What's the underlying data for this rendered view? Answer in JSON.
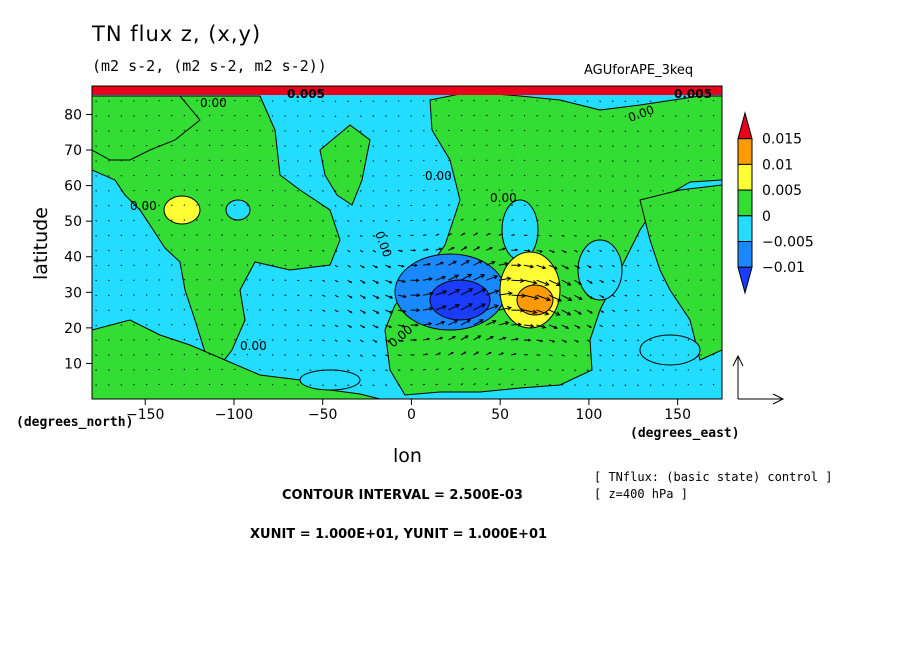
{
  "header": {
    "title": "TN flux z, (x,y)",
    "subtitle": "(m2 s-2, (m2 s-2, m2 s-2))",
    "dataset": "AGUforAPE_3keq"
  },
  "footer": {
    "contour_interval": "CONTOUR INTERVAL = 2.500E-03",
    "units": "XUNIT = 1.000E+01, YUNIT = 1.000E+01",
    "info_line1": "[ TNflux: (basic state) control ]",
    "info_line2": "[ z=400 hPa ]"
  },
  "contour_labels": [
    "0.00",
    "0.00",
    "0.00",
    "0.00",
    "0.00",
    "0.00",
    "0.00",
    "0.00",
    "0.005",
    "0.005"
  ],
  "colors": {
    "red": "#e8001c",
    "orange": "#ff9a00",
    "yellow": "#ffff33",
    "green": "#33dd33",
    "cyan": "#22ddff",
    "blue": "#1a88ff",
    "deepblue": "#1a3cff"
  },
  "chart_data": {
    "type": "heatmap",
    "title": "TN flux z, (x,y)",
    "subtitle": "(m2 s-2, (m2 s-2, m2 s-2))",
    "xlabel": "lon",
    "ylabel": "latitude",
    "x_units": "(degrees_east)",
    "y_units": "(degrees_north)",
    "xlim": [
      -180,
      175
    ],
    "ylim": [
      0,
      88
    ],
    "x_ticks": [
      -150,
      -100,
      -50,
      0,
      50,
      100,
      150
    ],
    "x_tick_labels": [
      "−150",
      "−100",
      "−50",
      "0",
      "50",
      "100",
      "150"
    ],
    "y_ticks": [
      10,
      20,
      30,
      40,
      50,
      60,
      70,
      80
    ],
    "y_tick_labels": [
      "10",
      "20",
      "30",
      "40",
      "50",
      "60",
      "70",
      "80"
    ],
    "colorbar": {
      "levels": [
        "0.015",
        "0.01",
        "0.005",
        "0",
        "−0.005",
        "−0.01"
      ],
      "bins": [
        {
          "range": "> 0.015",
          "color": "#e8001c"
        },
        {
          "range": "0.01 to 0.015",
          "color": "#ff9a00"
        },
        {
          "range": "0.005 to 0.01",
          "color": "#ffff33"
        },
        {
          "range": "0 to 0.005",
          "color": "#33dd33"
        },
        {
          "range": "-0.005 to 0",
          "color": "#22ddff"
        },
        {
          "range": "-0.01 to -0.005",
          "color": "#1a88ff"
        },
        {
          "range": "< -0.01",
          "color": "#1a3cff"
        }
      ]
    },
    "features": [
      {
        "kind": "positive_max",
        "lon": 70,
        "lat": 30,
        "value": 0.012
      },
      {
        "kind": "positive",
        "lon": 65,
        "lat": 37,
        "value": 0.006
      },
      {
        "kind": "negative_min",
        "lon": 30,
        "lat": 27,
        "value": -0.011
      },
      {
        "kind": "positive",
        "lon": -125,
        "lat": 53,
        "value": 0.006
      }
    ]
  }
}
